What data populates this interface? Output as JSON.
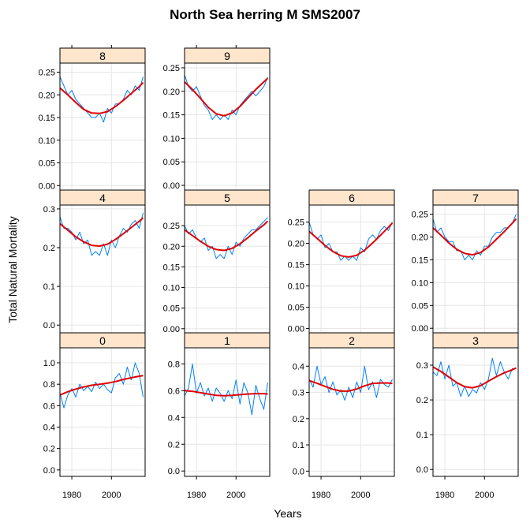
{
  "chart_data": {
    "type": "line",
    "title": "North Sea herring M SMS2007",
    "xlabel": "Years",
    "ylabel": "Total Natural Mortality",
    "x_range": [
      1974,
      2017
    ],
    "x_ticks": [
      1980,
      2000
    ],
    "grid": true,
    "colors": {
      "raw": "#0080ff",
      "smooth": "#e00000",
      "strip": "#ffe5cc"
    },
    "panels": [
      {
        "label": "8",
        "ylim": [
          -0.01,
          0.27
        ],
        "yticks": [
          0.0,
          0.05,
          0.1,
          0.15,
          0.2,
          0.25
        ],
        "tick_decimals": 2,
        "series": [
          {
            "name": "raw",
            "x": [
              1974,
              1976,
              1978,
              1980,
              1982,
              1984,
              1986,
              1988,
              1990,
              1992,
              1994,
              1996,
              1998,
              2000,
              2002,
              2004,
              2006,
              2008,
              2010,
              2012,
              2014,
              2016
            ],
            "y": [
              0.24,
              0.22,
              0.2,
              0.21,
              0.19,
              0.18,
              0.17,
              0.16,
              0.15,
              0.15,
              0.16,
              0.14,
              0.17,
              0.16,
              0.18,
              0.18,
              0.19,
              0.21,
              0.2,
              0.22,
              0.21,
              0.24
            ]
          },
          {
            "name": "smooth",
            "x": [
              1974,
              1978,
              1982,
              1986,
              1990,
              1994,
              1998,
              2002,
              2006,
              2010,
              2014,
              2016
            ],
            "y": [
              0.215,
              0.2,
              0.183,
              0.168,
              0.16,
              0.159,
              0.163,
              0.174,
              0.188,
              0.203,
              0.218,
              0.227
            ]
          }
        ]
      },
      {
        "label": "9",
        "ylim": [
          -0.01,
          0.26
        ],
        "yticks": [
          0.0,
          0.05,
          0.1,
          0.15,
          0.2,
          0.25
        ],
        "tick_decimals": 2,
        "series": [
          {
            "name": "raw",
            "x": [
              1974,
              1976,
              1978,
              1980,
              1982,
              1984,
              1986,
              1988,
              1990,
              1992,
              1994,
              1996,
              1998,
              2000,
              2002,
              2004,
              2006,
              2008,
              2010,
              2012,
              2014,
              2016
            ],
            "y": [
              0.235,
              0.21,
              0.2,
              0.21,
              0.19,
              0.17,
              0.16,
              0.14,
              0.15,
              0.14,
              0.15,
              0.14,
              0.16,
              0.15,
              0.17,
              0.18,
              0.19,
              0.2,
              0.19,
              0.2,
              0.21,
              0.23
            ]
          },
          {
            "name": "smooth",
            "x": [
              1974,
              1978,
              1982,
              1986,
              1990,
              1994,
              1998,
              2002,
              2006,
              2010,
              2014,
              2016
            ],
            "y": [
              0.22,
              0.204,
              0.185,
              0.166,
              0.152,
              0.148,
              0.154,
              0.168,
              0.186,
              0.204,
              0.22,
              0.228
            ]
          }
        ]
      },
      {
        "label": "4",
        "ylim": [
          -0.02,
          0.31
        ],
        "yticks": [
          0.0,
          0.1,
          0.2,
          0.3
        ],
        "tick_decimals": 1,
        "series": [
          {
            "name": "raw",
            "x": [
              1974,
              1976,
              1978,
              1980,
              1982,
              1984,
              1986,
              1988,
              1990,
              1992,
              1994,
              1996,
              1998,
              2000,
              2002,
              2004,
              2006,
              2008,
              2010,
              2012,
              2014,
              2016
            ],
            "y": [
              0.28,
              0.25,
              0.25,
              0.24,
              0.22,
              0.24,
              0.21,
              0.22,
              0.18,
              0.19,
              0.18,
              0.21,
              0.18,
              0.22,
              0.2,
              0.23,
              0.25,
              0.24,
              0.26,
              0.27,
              0.25,
              0.29
            ]
          },
          {
            "name": "smooth",
            "x": [
              1974,
              1978,
              1982,
              1986,
              1990,
              1994,
              1998,
              2002,
              2006,
              2010,
              2014,
              2016
            ],
            "y": [
              0.262,
              0.245,
              0.228,
              0.215,
              0.206,
              0.204,
              0.209,
              0.221,
              0.236,
              0.252,
              0.268,
              0.277
            ]
          }
        ]
      },
      {
        "label": "5",
        "ylim": [
          -0.01,
          0.3
        ],
        "yticks": [
          0.0,
          0.05,
          0.1,
          0.15,
          0.2,
          0.25
        ],
        "tick_decimals": 2,
        "series": [
          {
            "name": "raw",
            "x": [
              1974,
              1976,
              1978,
              1980,
              1982,
              1984,
              1986,
              1988,
              1990,
              1992,
              1994,
              1996,
              1998,
              2000,
              2002,
              2004,
              2006,
              2008,
              2010,
              2012,
              2014,
              2016
            ],
            "y": [
              0.25,
              0.23,
              0.24,
              0.22,
              0.21,
              0.22,
              0.19,
              0.2,
              0.17,
              0.18,
              0.17,
              0.2,
              0.18,
              0.21,
              0.2,
              0.22,
              0.23,
              0.24,
              0.24,
              0.25,
              0.26,
              0.27
            ]
          },
          {
            "name": "smooth",
            "x": [
              1974,
              1978,
              1982,
              1986,
              1990,
              1994,
              1998,
              2002,
              2006,
              2010,
              2014,
              2016
            ],
            "y": [
              0.24,
              0.226,
              0.212,
              0.2,
              0.192,
              0.19,
              0.195,
              0.206,
              0.221,
              0.237,
              0.252,
              0.261
            ]
          }
        ]
      },
      {
        "label": "6",
        "ylim": [
          -0.01,
          0.29
        ],
        "yticks": [
          0.0,
          0.05,
          0.1,
          0.15,
          0.2,
          0.25
        ],
        "tick_decimals": 2,
        "series": [
          {
            "name": "raw",
            "x": [
              1974,
              1976,
              1978,
              1980,
              1982,
              1984,
              1986,
              1988,
              1990,
              1992,
              1994,
              1996,
              1998,
              2000,
              2002,
              2004,
              2006,
              2008,
              2010,
              2012,
              2014,
              2016
            ],
            "y": [
              0.25,
              0.22,
              0.21,
              0.22,
              0.19,
              0.2,
              0.18,
              0.18,
              0.16,
              0.17,
              0.16,
              0.17,
              0.16,
              0.19,
              0.18,
              0.21,
              0.22,
              0.21,
              0.23,
              0.24,
              0.23,
              0.25
            ]
          },
          {
            "name": "smooth",
            "x": [
              1974,
              1978,
              1982,
              1986,
              1990,
              1994,
              1998,
              2002,
              2006,
              2010,
              2014,
              2016
            ],
            "y": [
              0.228,
              0.212,
              0.195,
              0.181,
              0.171,
              0.168,
              0.172,
              0.184,
              0.201,
              0.219,
              0.238,
              0.248
            ]
          }
        ]
      },
      {
        "label": "7",
        "ylim": [
          -0.01,
          0.27
        ],
        "yticks": [
          0.0,
          0.05,
          0.1,
          0.15,
          0.2,
          0.25
        ],
        "tick_decimals": 2,
        "series": [
          {
            "name": "raw",
            "x": [
              1974,
              1976,
              1978,
              1980,
              1982,
              1984,
              1986,
              1988,
              1990,
              1992,
              1994,
              1996,
              1998,
              2000,
              2002,
              2004,
              2006,
              2008,
              2010,
              2012,
              2014,
              2016
            ],
            "y": [
              0.24,
              0.21,
              0.22,
              0.2,
              0.19,
              0.19,
              0.17,
              0.17,
              0.15,
              0.16,
              0.15,
              0.17,
              0.16,
              0.18,
              0.18,
              0.2,
              0.21,
              0.21,
              0.22,
              0.22,
              0.23,
              0.25
            ]
          },
          {
            "name": "smooth",
            "x": [
              1974,
              1978,
              1982,
              1986,
              1990,
              1994,
              1998,
              2002,
              2006,
              2010,
              2014,
              2016
            ],
            "y": [
              0.22,
              0.204,
              0.187,
              0.173,
              0.164,
              0.161,
              0.166,
              0.178,
              0.195,
              0.212,
              0.23,
              0.24
            ]
          }
        ]
      },
      {
        "label": "0",
        "ylim": [
          -0.06,
          1.14
        ],
        "yticks": [
          0.0,
          0.2,
          0.4,
          0.6,
          0.8,
          1.0
        ],
        "tick_decimals": 1,
        "series": [
          {
            "name": "raw",
            "x": [
              1974,
              1976,
              1978,
              1980,
              1982,
              1984,
              1986,
              1988,
              1990,
              1992,
              1994,
              1996,
              1998,
              2000,
              2002,
              2004,
              2006,
              2008,
              2010,
              2012,
              2014,
              2016
            ],
            "y": [
              0.72,
              0.58,
              0.7,
              0.76,
              0.68,
              0.8,
              0.74,
              0.78,
              0.73,
              0.82,
              0.76,
              0.8,
              0.75,
              0.72,
              0.86,
              0.9,
              0.8,
              0.96,
              0.84,
              1.0,
              0.9,
              0.68
            ]
          },
          {
            "name": "smooth",
            "x": [
              1974,
              1978,
              1982,
              1986,
              1990,
              1994,
              1998,
              2002,
              2006,
              2010,
              2014,
              2016
            ],
            "y": [
              0.7,
              0.73,
              0.755,
              0.775,
              0.79,
              0.8,
              0.81,
              0.825,
              0.845,
              0.86,
              0.875,
              0.88
            ]
          }
        ]
      },
      {
        "label": "1",
        "ylim": [
          -0.04,
          0.92
        ],
        "yticks": [
          0.0,
          0.2,
          0.4,
          0.6,
          0.8
        ],
        "tick_decimals": 1,
        "series": [
          {
            "name": "raw",
            "x": [
              1974,
              1976,
              1978,
              1980,
              1982,
              1984,
              1986,
              1988,
              1990,
              1992,
              1994,
              1996,
              1998,
              2000,
              2002,
              2004,
              2006,
              2008,
              2010,
              2012,
              2014,
              2016
            ],
            "y": [
              0.56,
              0.62,
              0.8,
              0.58,
              0.66,
              0.56,
              0.62,
              0.52,
              0.62,
              0.58,
              0.52,
              0.6,
              0.54,
              0.68,
              0.5,
              0.66,
              0.58,
              0.42,
              0.64,
              0.54,
              0.46,
              0.66
            ]
          },
          {
            "name": "smooth",
            "x": [
              1974,
              1978,
              1982,
              1986,
              1990,
              1994,
              1998,
              2002,
              2006,
              2010,
              2014,
              2016
            ],
            "y": [
              0.6,
              0.595,
              0.585,
              0.575,
              0.565,
              0.562,
              0.565,
              0.57,
              0.575,
              0.578,
              0.578,
              0.575
            ]
          }
        ]
      },
      {
        "label": "2",
        "ylim": [
          -0.02,
          0.47
        ],
        "yticks": [
          0.0,
          0.1,
          0.2,
          0.3,
          0.4
        ],
        "tick_decimals": 1,
        "series": [
          {
            "name": "raw",
            "x": [
              1974,
              1976,
              1978,
              1980,
              1982,
              1984,
              1986,
              1988,
              1990,
              1992,
              1994,
              1996,
              1998,
              2000,
              2002,
              2004,
              2006,
              2008,
              2010,
              2012,
              2014,
              2016
            ],
            "y": [
              0.35,
              0.32,
              0.4,
              0.33,
              0.36,
              0.3,
              0.34,
              0.29,
              0.31,
              0.27,
              0.32,
              0.28,
              0.34,
              0.3,
              0.4,
              0.31,
              0.34,
              0.28,
              0.35,
              0.33,
              0.32,
              0.35
            ]
          },
          {
            "name": "smooth",
            "x": [
              1974,
              1978,
              1982,
              1986,
              1990,
              1994,
              1998,
              2002,
              2006,
              2010,
              2014,
              2016
            ],
            "y": [
              0.345,
              0.335,
              0.323,
              0.312,
              0.305,
              0.305,
              0.313,
              0.325,
              0.334,
              0.336,
              0.336,
              0.334
            ]
          }
        ]
      },
      {
        "label": "3",
        "ylim": [
          -0.02,
          0.35
        ],
        "yticks": [
          0.0,
          0.1,
          0.2,
          0.3
        ],
        "tick_decimals": 1,
        "series": [
          {
            "name": "raw",
            "x": [
              1974,
              1976,
              1978,
              1980,
              1982,
              1984,
              1986,
              1988,
              1990,
              1992,
              1994,
              1996,
              1998,
              2000,
              2002,
              2004,
              2006,
              2008,
              2010,
              2012,
              2014,
              2016
            ],
            "y": [
              0.28,
              0.27,
              0.31,
              0.26,
              0.3,
              0.24,
              0.25,
              0.21,
              0.24,
              0.21,
              0.23,
              0.22,
              0.25,
              0.23,
              0.26,
              0.32,
              0.27,
              0.31,
              0.28,
              0.26,
              0.29,
              0.29
            ]
          },
          {
            "name": "smooth",
            "x": [
              1974,
              1978,
              1982,
              1986,
              1990,
              1994,
              1998,
              2002,
              2006,
              2010,
              2014,
              2016
            ],
            "y": [
              0.295,
              0.282,
              0.266,
              0.25,
              0.238,
              0.235,
              0.241,
              0.254,
              0.267,
              0.278,
              0.287,
              0.292
            ]
          }
        ]
      }
    ]
  }
}
